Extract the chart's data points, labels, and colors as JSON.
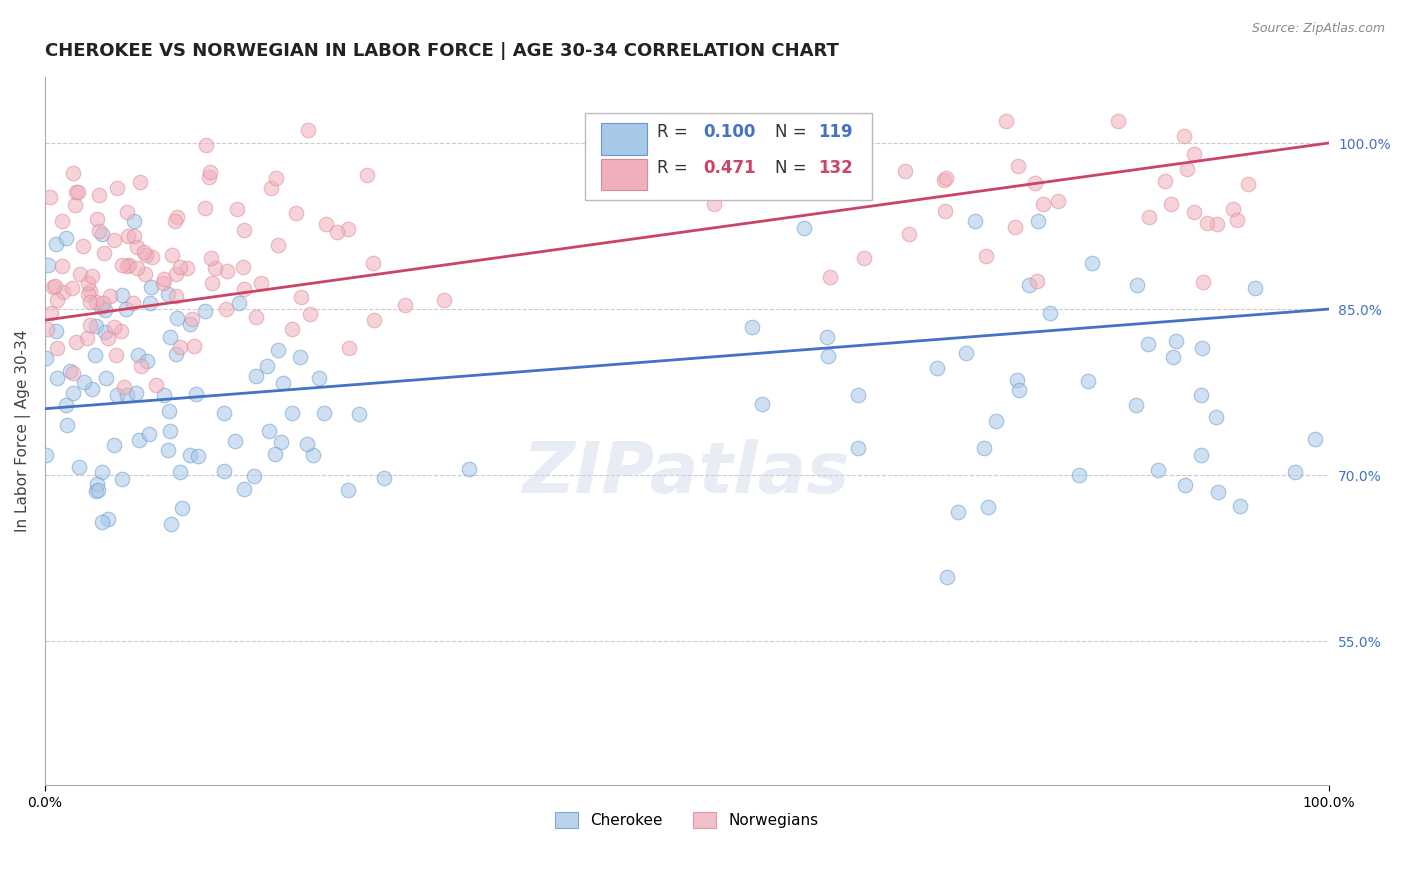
{
  "title": "CHEROKEE VS NORWEGIAN IN LABOR FORCE | AGE 30-34 CORRELATION CHART",
  "source": "Source: ZipAtlas.com",
  "ylabel": "In Labor Force | Age 30-34",
  "ytick_labels": [
    "55.0%",
    "70.0%",
    "85.0%",
    "100.0%"
  ],
  "ytick_values": [
    0.55,
    0.7,
    0.85,
    1.0
  ],
  "xlim": [
    0.0,
    1.0
  ],
  "ylim": [
    0.42,
    1.06
  ],
  "cherokee_r": 0.1,
  "cherokee_n": 119,
  "norwegian_r": 0.471,
  "norwegian_n": 132,
  "cherokee_fill": "#a8c8e8",
  "cherokee_edge": "#6699cc",
  "norwegian_fill": "#f0b0bb",
  "norwegian_edge": "#dd8899",
  "cherokee_line_color": "#4472c4",
  "norwegian_line_color": "#cc4466",
  "background_color": "#ffffff",
  "grid_color": "#cccccc",
  "title_fontsize": 13,
  "axis_label_fontsize": 11,
  "tick_fontsize": 10,
  "dot_size": 110,
  "dot_alpha": 0.55,
  "legend_cherokee_label": "Cherokee",
  "legend_norwegian_label": "Norwegians",
  "watermark": "ZIPatlas",
  "cherokee_line_y0": 0.76,
  "cherokee_line_y1": 0.85,
  "norwegian_line_y0": 0.84,
  "norwegian_line_y1": 1.0
}
